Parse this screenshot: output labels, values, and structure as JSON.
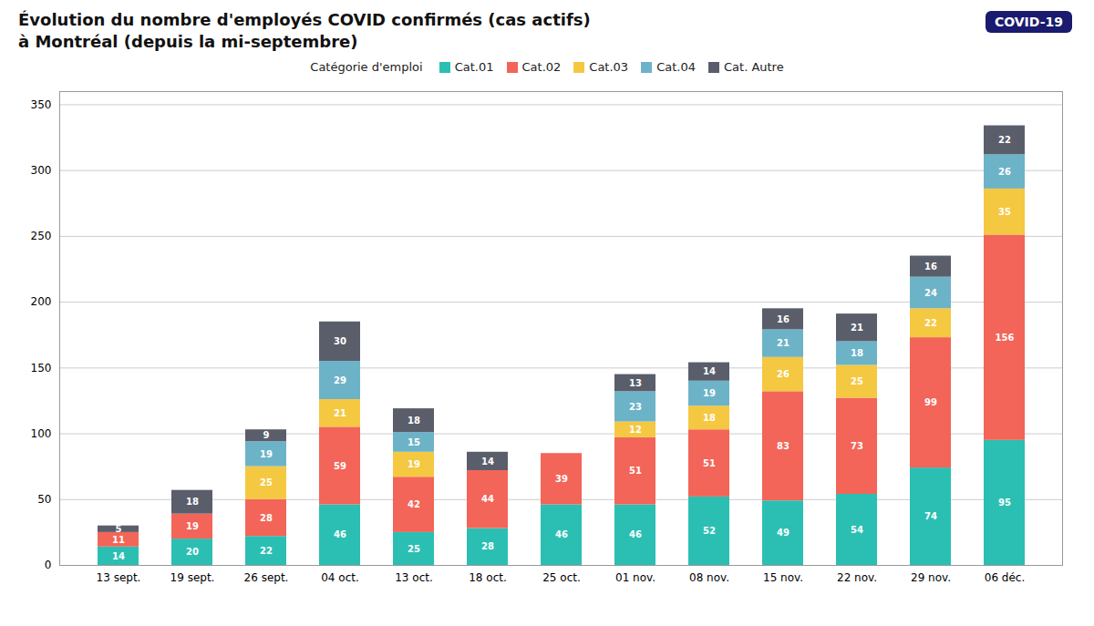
{
  "chart_data": {
    "type": "bar",
    "title": "Évolution du nombre d'employés COVID confirmés (cas actifs)",
    "subtitle": "à Montréal (depuis la mi-septembre)",
    "categories": [
      "13 sept.",
      "19 sept.",
      "26 sept.",
      "04 oct.",
      "13 oct.",
      "18 oct.",
      "25 oct.",
      "01 nov.",
      "08 nov.",
      "15 nov.",
      "22 nov.",
      "29 nov.",
      "06 déc."
    ],
    "series": [
      {
        "name": "Cat.01",
        "color": "#2bbfb3",
        "values": [
          14,
          20,
          22,
          46,
          25,
          28,
          46,
          46,
          52,
          49,
          54,
          74,
          95
        ]
      },
      {
        "name": "Cat.02",
        "color": "#f26558",
        "values": [
          11,
          19,
          28,
          59,
          42,
          44,
          39,
          51,
          51,
          83,
          73,
          99,
          156
        ]
      },
      {
        "name": "Cat.03",
        "color": "#f5c842",
        "values": [
          0,
          0,
          25,
          21,
          19,
          0,
          0,
          12,
          18,
          26,
          25,
          22,
          35
        ]
      },
      {
        "name": "Cat.04",
        "color": "#6db3c8",
        "values": [
          0,
          0,
          19,
          29,
          15,
          0,
          0,
          23,
          19,
          21,
          18,
          24,
          26
        ]
      },
      {
        "name": "Cat. Autre",
        "color": "#5a5e6b",
        "values": [
          5,
          18,
          9,
          30,
          18,
          14,
          0,
          13,
          14,
          16,
          21,
          16,
          22
        ]
      }
    ],
    "legend_title": "Catégorie d'emploi",
    "legend": "top",
    "annotations": [
      {
        "text": "COVID-19",
        "color": "#1a1a6e"
      }
    ],
    "ylim": [
      0,
      360
    ],
    "yticks": [
      0,
      50,
      100,
      150,
      200,
      250,
      300,
      350
    ],
    "grid": true,
    "stacked": true,
    "data_labels": true
  }
}
